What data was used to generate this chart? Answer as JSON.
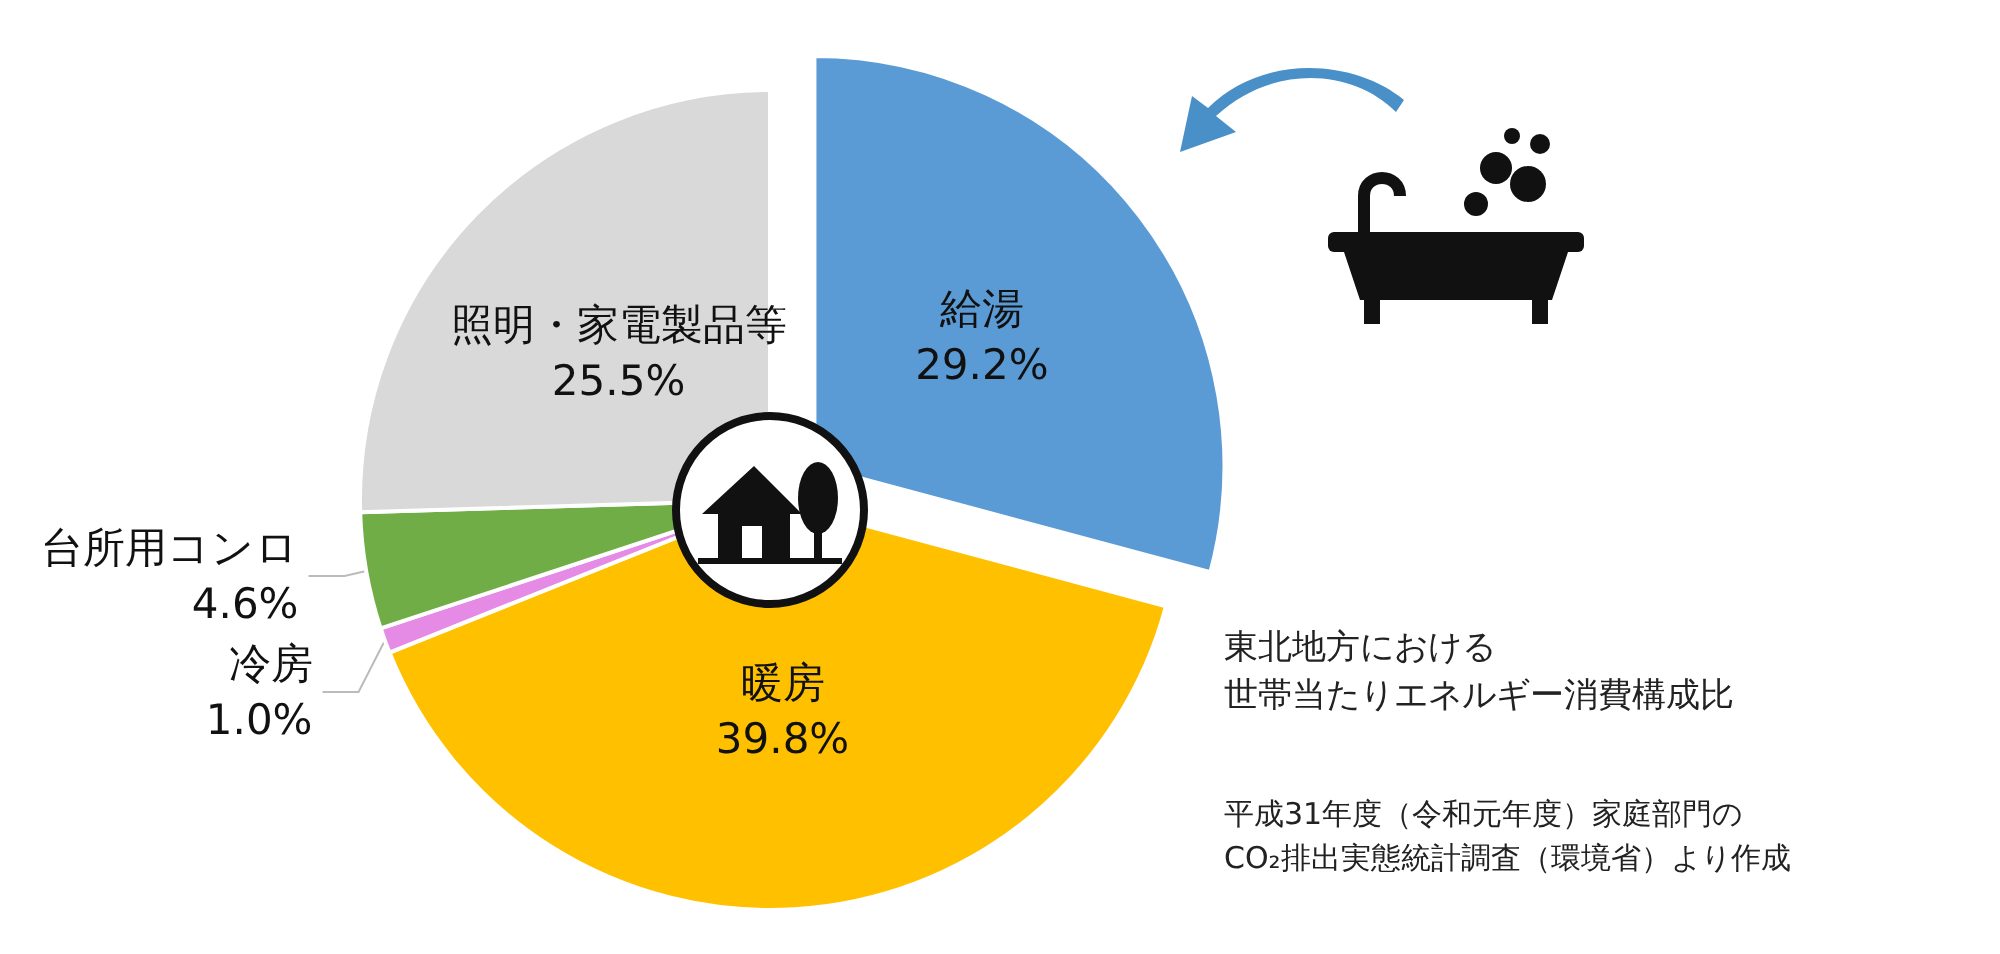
{
  "chart_data": {
    "type": "pie",
    "categories": [
      "給湯",
      "暖房",
      "冷房",
      "台所用コンロ",
      "照明・家電製品等"
    ],
    "values": [
      29.2,
      39.8,
      1.0,
      4.6,
      25.5
    ],
    "colors": [
      "#5b9bd5",
      "#ffc000",
      "#e58be5",
      "#70ad47",
      "#d9d9d9"
    ],
    "value_labels": [
      "29.2%",
      "39.8%",
      "1.0%",
      "4.6%",
      "25.5%"
    ],
    "annotations": [
      "東北地方における",
      "世帯当たりエネルギー消費構成比",
      "平成31年度（令和元年度）家庭部門の",
      "CO₂排出実態統計調査（環境省）より作成"
    ]
  }
}
